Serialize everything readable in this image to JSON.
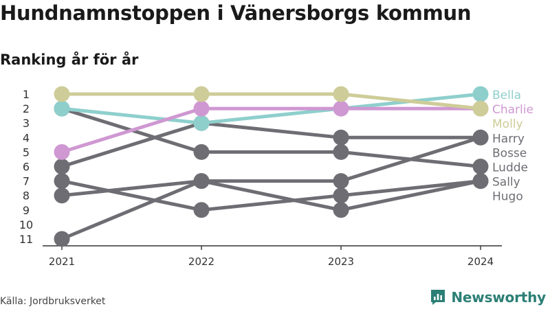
{
  "header": {
    "title": "Hundnamnstoppen i Vänersborgs kommun",
    "subtitle": "Ranking år för år"
  },
  "footer": {
    "source": "Källa: Jordbruksverket",
    "brand": "Newsworthy"
  },
  "colors": {
    "Bella": "#8ecfcc",
    "Charlie": "#cf98d2",
    "Molly": "#cecc98",
    "other": "#6e6d73",
    "axis": "#333333",
    "text": "#333333"
  },
  "chart_data": {
    "type": "line",
    "title": "Hundnamnstoppen i Vänersborgs kommun",
    "subtitle": "Ranking år för år",
    "x": [
      "2021",
      "2022",
      "2023",
      "2024"
    ],
    "y_ticks": [
      1,
      2,
      3,
      4,
      5,
      6,
      7,
      8,
      9,
      10,
      11
    ],
    "ylim": [
      1,
      11
    ],
    "y_inverted": true,
    "grid": false,
    "legend": "direct-labels-right",
    "series": [
      {
        "name": "Bella",
        "values": [
          2,
          3,
          2,
          1
        ]
      },
      {
        "name": "Charlie",
        "values": [
          5,
          2,
          2,
          2
        ]
      },
      {
        "name": "Molly",
        "values": [
          1,
          1,
          1,
          2
        ]
      },
      {
        "name": "Harry",
        "values": [
          6,
          3,
          4,
          4
        ]
      },
      {
        "name": "Bosse",
        "values": [
          11,
          7,
          7,
          4
        ]
      },
      {
        "name": "Ludde",
        "values": [
          2,
          5,
          5,
          6
        ]
      },
      {
        "name": "Sally",
        "values": [
          7,
          9,
          8,
          7
        ]
      },
      {
        "name": "Hugo",
        "values": [
          8,
          7,
          9,
          7
        ]
      }
    ]
  }
}
